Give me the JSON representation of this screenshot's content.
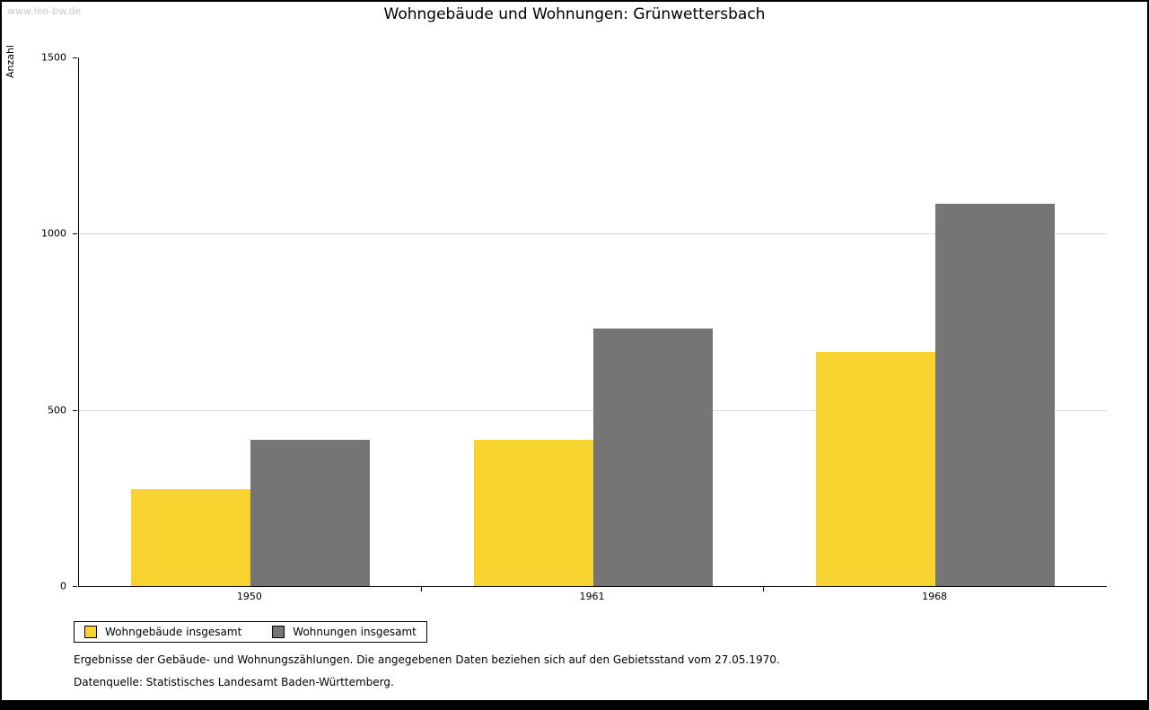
{
  "watermark": "www.leo-bw.de",
  "footnotes": [
    "Ergebnisse der Gebäude- und Wohnungszählungen. Die angegebenen Daten beziehen sich auf den Gebietsstand vom 27.05.1970.",
    "Datenquelle: Statistisches Landesamt Baden-Württemberg."
  ],
  "chart_data": {
    "type": "bar",
    "title": "Wohngebäude und Wohnungen: Grünwettersbach",
    "ylabel": "Anzahl",
    "xlabel": "",
    "categories": [
      "1950",
      "1961",
      "1968"
    ],
    "series": [
      {
        "name": "Wohngebäude insgesamt",
        "color": "#F8D22E",
        "values": [
          275,
          415,
          665
        ]
      },
      {
        "name": "Wohnungen insgesamt",
        "color": "#757575",
        "values": [
          415,
          730,
          1085
        ]
      }
    ],
    "ylim": [
      0,
      1500
    ],
    "yticks": [
      0,
      500,
      1000,
      1500
    ],
    "grid": true,
    "gridline_color": "#d8d8d8",
    "legend_position": "bottom-left"
  }
}
